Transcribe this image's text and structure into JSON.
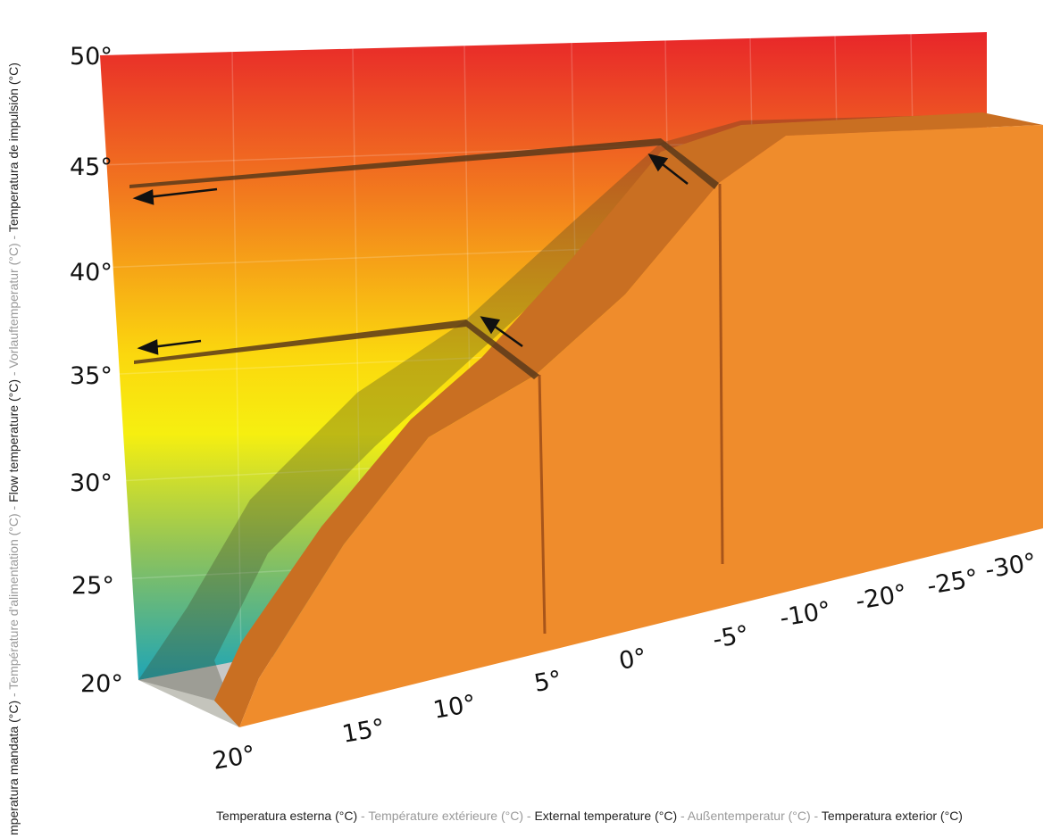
{
  "y_axis": {
    "ticks": [
      "50°",
      "45°",
      "40°",
      "35°",
      "30°",
      "25°",
      "20°"
    ],
    "title": [
      "mperatura mandata (°C)",
      "Température d'alimentation (°C)",
      "Flow temperature (°C)",
      "Vorlauftemperatur (°C)",
      "Temperatura de impulsión (°C)"
    ]
  },
  "x_axis": {
    "ticks": [
      "20°",
      "15°",
      "10°",
      "5°",
      "0°",
      "-5°",
      "-10°",
      "-20°",
      "-25°",
      "-30°"
    ],
    "title": [
      "Temperatura esterna (°C)",
      "Température extérieure (°C)",
      "External temperature (°C)",
      "Außentemperatur (°C)",
      "Temperatura exterior (°C)"
    ]
  },
  "separator": "-"
}
